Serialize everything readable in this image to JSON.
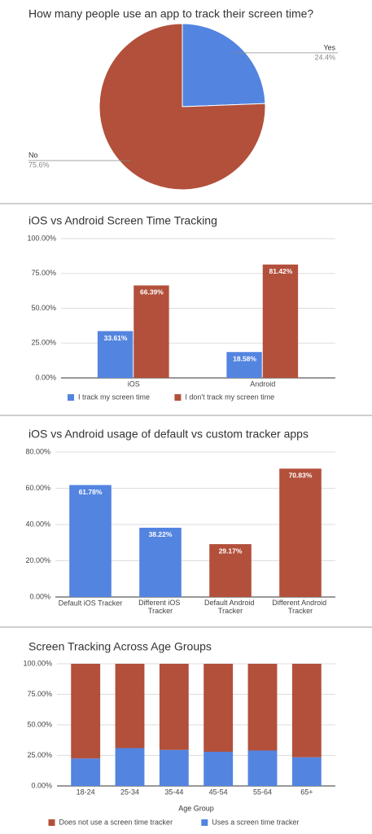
{
  "chart_data": [
    {
      "type": "pie",
      "title": "How many people use an app to track their screen time?",
      "categories": [
        "Yes",
        "No"
      ],
      "values": [
        24.4,
        75.6
      ],
      "value_labels": [
        "24.4%",
        "75.6%"
      ],
      "colors": [
        "#5384e0",
        "#b2503b"
      ]
    },
    {
      "type": "grouped_bar",
      "title": "iOS vs Android Screen Time Tracking",
      "categories": [
        "iOS",
        "Android"
      ],
      "series": [
        {
          "name": "I track my screen time",
          "color": "#5384e0",
          "values": [
            33.61,
            18.58
          ],
          "value_labels": [
            "33.61%",
            "18.58%"
          ]
        },
        {
          "name": "I don't track my screen time",
          "color": "#b2503b",
          "values": [
            66.39,
            81.42
          ],
          "value_labels": [
            "66.39%",
            "81.42%"
          ]
        }
      ],
      "ylim": [
        0,
        100
      ],
      "yticks": [
        {
          "value": 0,
          "label": "0.00%"
        },
        {
          "value": 25,
          "label": "25.00%"
        },
        {
          "value": 50,
          "label": "50.00%"
        },
        {
          "value": 75,
          "label": "75.00%"
        },
        {
          "value": 100,
          "label": "100.00%"
        }
      ],
      "grid": true,
      "legend": "bottom"
    },
    {
      "type": "bar",
      "title": "iOS vs Android usage of default vs custom tracker apps",
      "categories": [
        "Default iOS Tracker",
        "Different iOS Tracker",
        "Default Android Tracker",
        "Different Android Tracker"
      ],
      "values": [
        61.78,
        38.22,
        29.17,
        70.83
      ],
      "value_labels": [
        "61.78%",
        "38.22%",
        "29.17%",
        "70.83%"
      ],
      "colors": [
        "#5384e0",
        "#5384e0",
        "#b2503b",
        "#b2503b"
      ],
      "ylim": [
        0,
        80
      ],
      "yticks": [
        {
          "value": 0,
          "label": "0.00%"
        },
        {
          "value": 20,
          "label": "20.00%"
        },
        {
          "value": 40,
          "label": "40.00%"
        },
        {
          "value": 60,
          "label": "60.00%"
        },
        {
          "value": 80,
          "label": "80.00%"
        }
      ],
      "grid": true
    },
    {
      "type": "stacked_bar",
      "title": "Screen Tracking Across Age Groups",
      "xlabel": "Age Group",
      "categories": [
        "18-24",
        "25-34",
        "35-44",
        "45-54",
        "55-64",
        "65+"
      ],
      "series": [
        {
          "name": "Does not use a screen time tracker",
          "color": "#b2503b",
          "values": [
            77.5,
            69,
            70.5,
            72,
            71,
            76.5
          ]
        },
        {
          "name": "Uses a screen time tracker",
          "color": "#5384e0",
          "values": [
            22.5,
            31,
            29.5,
            28,
            29,
            23.5
          ]
        }
      ],
      "ylim": [
        0,
        100
      ],
      "yticks": [
        {
          "value": 0,
          "label": "0.00%"
        },
        {
          "value": 25,
          "label": "25.00%"
        },
        {
          "value": 50,
          "label": "50.00%"
        },
        {
          "value": 75,
          "label": "75.00%"
        },
        {
          "value": 100,
          "label": "100.00%"
        }
      ],
      "grid": true,
      "legend": "bottom"
    }
  ]
}
